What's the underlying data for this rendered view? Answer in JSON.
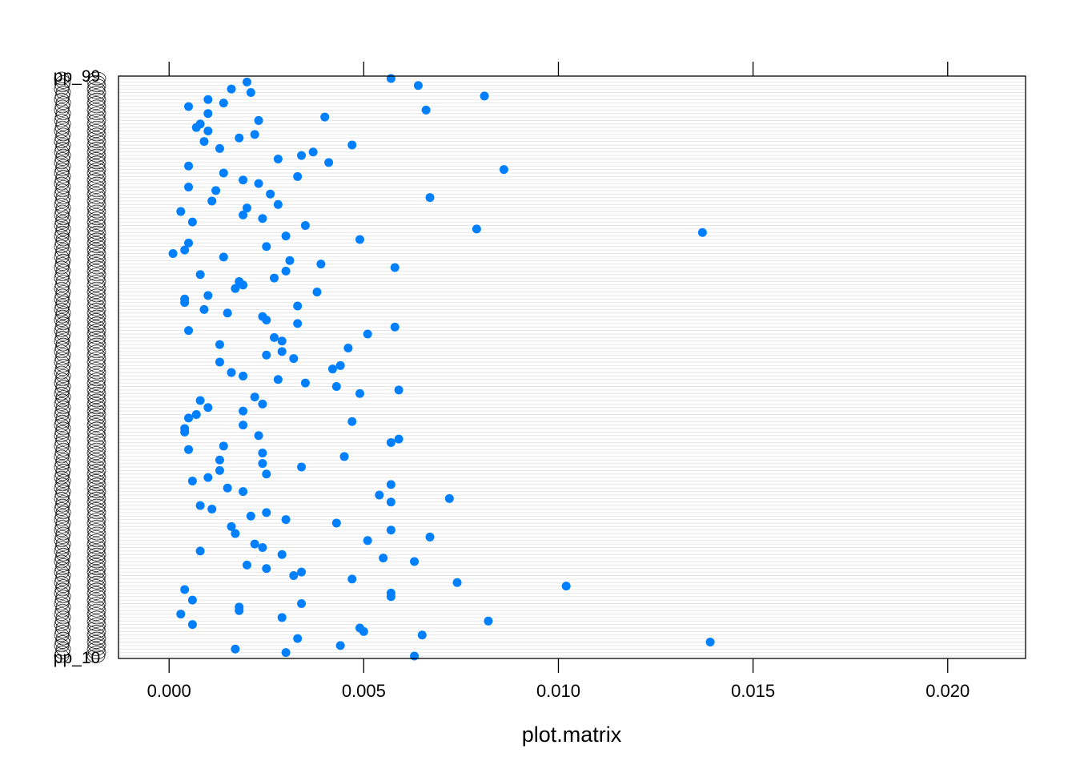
{
  "chart_data": {
    "type": "scatter",
    "title": "",
    "xlabel": "plot.matrix",
    "ylabel": "",
    "xlim": [
      -0.0013,
      0.022
    ],
    "x_ticks": [
      0.0,
      0.005,
      0.01,
      0.015,
      0.02
    ],
    "x_tick_labels": [
      "0.000",
      "0.005",
      "0.010",
      "0.015",
      "0.020"
    ],
    "grid": true,
    "legend": "none",
    "point_color": "#0080ff",
    "grid_color": "#e6e6e6",
    "y_first_label": "pp_10",
    "y_last_label": "pp_99",
    "values": [
      0.0063,
      0.003,
      0.0017,
      0.0044,
      0.0139,
      0.0033,
      0.0065,
      0.005,
      0.0049,
      0.0006,
      0.0082,
      0.0029,
      0.0003,
      0.0018,
      0.0018,
      0.0034,
      0.0006,
      0.0057,
      0.0057,
      0.0004,
      0.0102,
      0.0074,
      0.0047,
      0.0032,
      0.0034,
      0.0025,
      0.002,
      0.0063,
      0.0055,
      0.0029,
      0.0008,
      0.0024,
      0.0022,
      0.0051,
      0.0067,
      0.0017,
      0.0057,
      0.0016,
      0.0043,
      0.003,
      0.0021,
      0.0025,
      0.0011,
      0.0008,
      0.0057,
      0.0072,
      0.0054,
      0.0019,
      0.0015,
      0.0057,
      0.0006,
      0.001,
      0.0025,
      0.0013,
      0.0034,
      0.0024,
      0.0013,
      0.0045,
      0.0024,
      0.0005,
      0.0014,
      0.0057,
      0.0059,
      0.0023,
      0.0004,
      0.0004,
      0.0019,
      0.0047,
      0.0005,
      0.0007,
      0.0019,
      0.001,
      0.0024,
      0.0008,
      0.0022,
      0.0049,
      0.0059,
      0.0043,
      0.0035,
      0.0028,
      0.0019,
      0.0016,
      0.0042,
      0.0044,
      0.0013,
      0.0032,
      0.0025,
      0.0029,
      0.0046,
      0.0013,
      0.0029,
      0.0027,
      0.0051,
      0.0005,
      0.0058,
      0.0033,
      0.0025,
      0.0024,
      0.0015,
      0.0009,
      0.0033,
      0.0004,
      0.0004,
      0.001,
      0.0038,
      0.0017,
      0.0019,
      0.0018,
      0.0027,
      0.0008,
      0.003,
      0.0058,
      0.0039,
      0.0031,
      0.0014,
      0.0001,
      0.0004,
      0.0025,
      0.0005,
      0.0049,
      0.003,
      0.0137,
      0.0079,
      0.0035,
      0.0006,
      0.0024,
      0.0019,
      0.0003,
      0.002,
      0.0028,
      0.0011,
      0.0067,
      0.0026,
      0.0012,
      0.0005,
      0.0023,
      0.0019,
      0.0033,
      0.0014,
      0.0086,
      0.0005,
      0.0041,
      0.0028,
      0.0034,
      0.0037,
      0.0013,
      0.0047,
      0.0009,
      0.0018,
      0.0022,
      0.001,
      0.0007,
      0.0008,
      0.0023,
      0.004,
      0.001,
      0.0066,
      0.0005,
      0.0014,
      0.001,
      0.0081,
      0.0021,
      0.0016,
      0.0064,
      0.002,
      0.0057
    ]
  }
}
